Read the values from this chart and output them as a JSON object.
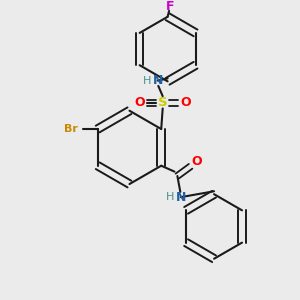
{
  "bg_color": "#ebebeb",
  "bond_color": "#1a1a1a",
  "colors": {
    "N": "#2060a0",
    "O": "#ff0000",
    "S": "#cccc00",
    "Br": "#cc8800",
    "F": "#cc00cc",
    "H": "#4a9090",
    "C": "#1a1a1a"
  },
  "figsize": [
    3.0,
    3.0
  ],
  "dpi": 100
}
